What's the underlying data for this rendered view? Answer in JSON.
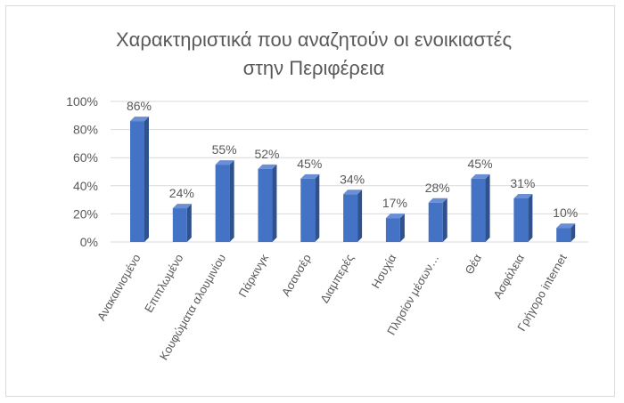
{
  "chart_data": {
    "type": "bar",
    "title_lines": [
      "Χαρακτηριστικά που αναζητούν οι ενοικιαστές",
      "στην Περιφέρεια"
    ],
    "categories": [
      "Ανακαινισμένο",
      "Επιπλωμένο",
      "Κουφώματα αλουμινίου",
      "Πάρκινγκ",
      "Ασανσέρ",
      "Διαμπερές",
      "Ησυχία",
      "Πλησίον μέσων…",
      "Θέα",
      "Ασφάλεια",
      "Γρήγορο internet"
    ],
    "values": [
      86,
      24,
      55,
      52,
      45,
      34,
      17,
      28,
      45,
      31,
      10
    ],
    "data_labels": [
      "86%",
      "24%",
      "55%",
      "52%",
      "45%",
      "34%",
      "17%",
      "28%",
      "45%",
      "31%",
      "10%"
    ],
    "y_ticks": [
      "0%",
      "20%",
      "40%",
      "60%",
      "80%",
      "100%"
    ],
    "ylim": [
      0,
      100
    ],
    "grid": true,
    "colors": {
      "bar": "#4472c4",
      "bar_side": "#2f528f",
      "bar_top": "#6a8fd4",
      "grid": "#d9d9d9",
      "text": "#595959"
    }
  }
}
